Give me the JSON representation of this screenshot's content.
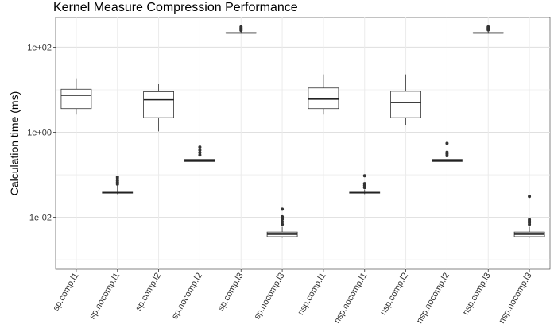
{
  "chart_data": {
    "type": "boxplot",
    "title": "Kernel Measure Compression Performance",
    "xlabel": "",
    "ylabel": "Calculation time (ms)",
    "y_scale": "log10",
    "ylim": [
      0.0006,
      500
    ],
    "y_ticks": [
      {
        "value": 100,
        "label": "1e+02"
      },
      {
        "value": 1,
        "label": "1e+00"
      },
      {
        "value": 0.01,
        "label": "1e-02"
      }
    ],
    "grid": true,
    "categories": [
      "sp.comp.l1",
      "sp.nocomp.l1",
      "sp.comp.l2",
      "sp.nocomp.l2",
      "sp.comp.l3",
      "sp.nocomp.l3",
      "nsp.comp.l1",
      "nsp.nocomp.l1",
      "nsp.comp.l2",
      "nsp.nocomp.l2",
      "nsp.comp.l3",
      "nsp.nocomp.l3"
    ],
    "boxes": [
      {
        "whisker_low": 2.6,
        "q1": 3.6,
        "median": 7.4,
        "q3": 10.3,
        "whisker_high": 18.5,
        "outliers": []
      },
      {
        "whisker_low": 0.035,
        "q1": 0.037,
        "median": 0.038,
        "q3": 0.039,
        "whisker_high": 0.055,
        "outliers": [
          0.06,
          0.066,
          0.072,
          0.08,
          0.088
        ]
      },
      {
        "whisker_low": 1.05,
        "q1": 2.2,
        "median": 5.8,
        "q3": 9.0,
        "whisker_high": 13.5,
        "outliers": []
      },
      {
        "whisker_low": 0.19,
        "q1": 0.205,
        "median": 0.215,
        "q3": 0.23,
        "whisker_high": 0.25,
        "outliers": [
          0.29,
          0.33,
          0.38,
          0.45
        ]
      },
      {
        "whisker_low": 210,
        "q1": 214,
        "median": 217,
        "q3": 220,
        "whisker_high": 235,
        "outliers": [
          250,
          265,
          280,
          300
        ]
      },
      {
        "whisker_low": 0.0033,
        "q1": 0.0035,
        "median": 0.004,
        "q3": 0.0045,
        "whisker_high": 0.006,
        "outliers": [
          0.0068,
          0.0078,
          0.009,
          0.0103,
          0.0155
        ]
      },
      {
        "whisker_low": 2.6,
        "q1": 3.6,
        "median": 6.0,
        "q3": 11.0,
        "whisker_high": 23.0,
        "outliers": []
      },
      {
        "whisker_low": 0.035,
        "q1": 0.037,
        "median": 0.038,
        "q3": 0.039,
        "whisker_high": 0.045,
        "outliers": [
          0.05,
          0.056,
          0.062,
          0.095
        ]
      },
      {
        "whisker_low": 1.5,
        "q1": 2.2,
        "median": 5.0,
        "q3": 9.2,
        "whisker_high": 23.0,
        "outliers": []
      },
      {
        "whisker_low": 0.19,
        "q1": 0.205,
        "median": 0.215,
        "q3": 0.23,
        "whisker_high": 0.25,
        "outliers": [
          0.28,
          0.31,
          0.34,
          0.55
        ]
      },
      {
        "whisker_low": 210,
        "q1": 214,
        "median": 217,
        "q3": 220,
        "whisker_high": 235,
        "outliers": [
          255,
          270,
          285,
          300
        ]
      },
      {
        "whisker_low": 0.0033,
        "q1": 0.0035,
        "median": 0.004,
        "q3": 0.0045,
        "whisker_high": 0.006,
        "outliers": [
          0.0068,
          0.0075,
          0.0082,
          0.0088,
          0.031
        ]
      }
    ]
  }
}
